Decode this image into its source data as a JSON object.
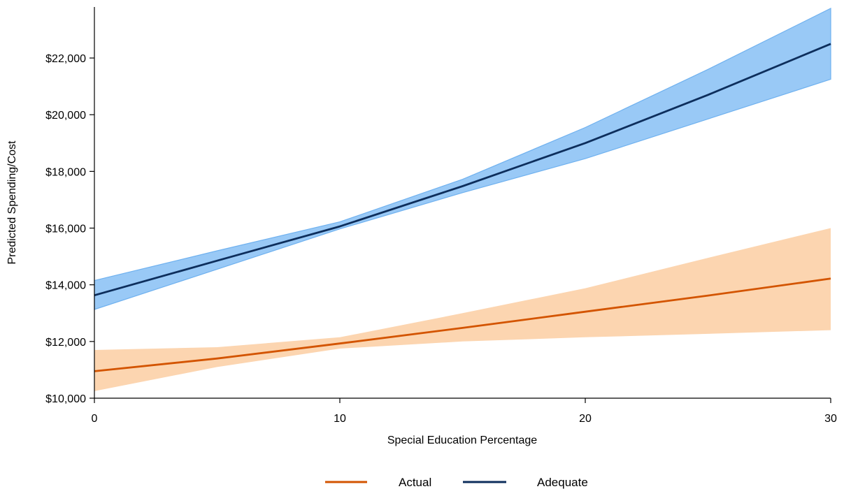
{
  "chart_data": {
    "type": "line",
    "xlabel": "Special Education Percentage",
    "ylabel": "Predicted Spending/Cost",
    "xlim": [
      0,
      30
    ],
    "ylim": [
      10000,
      23800
    ],
    "x_ticks": [
      0,
      10,
      20,
      30
    ],
    "x_tick_labels": [
      "0",
      "10",
      "20",
      "30"
    ],
    "y_ticks": [
      10000,
      12000,
      14000,
      16000,
      18000,
      20000,
      22000
    ],
    "y_tick_labels": [
      "$10,000",
      "$12,000",
      "$14,000",
      "$16,000",
      "$18,000",
      "$20,000",
      "$22,000"
    ],
    "grid": false,
    "legend_position": "bottom",
    "series": [
      {
        "name": "Actual",
        "color": "#d35400",
        "band_color": "#fcd5b0",
        "x": [
          0,
          5,
          10,
          15,
          20,
          25,
          30
        ],
        "y": [
          10950,
          11400,
          11930,
          12480,
          13050,
          13620,
          14220
        ],
        "lower": [
          10250,
          11100,
          11750,
          12000,
          12150,
          12270,
          12400
        ],
        "upper": [
          11700,
          11800,
          12150,
          13000,
          13880,
          14950,
          16000
        ]
      },
      {
        "name": "Adequate",
        "color": "#0d2e5c",
        "band_color": "#99c9f6",
        "band_edge": "#6fb1ef",
        "x": [
          0,
          5,
          10,
          15,
          20,
          25,
          30
        ],
        "y": [
          13630,
          14850,
          16060,
          17480,
          19000,
          20700,
          22500
        ],
        "lower": [
          13130,
          14550,
          15970,
          17250,
          18450,
          19850,
          21250
        ],
        "upper": [
          14150,
          15200,
          16220,
          17720,
          19550,
          21600,
          23750
        ]
      }
    ]
  }
}
